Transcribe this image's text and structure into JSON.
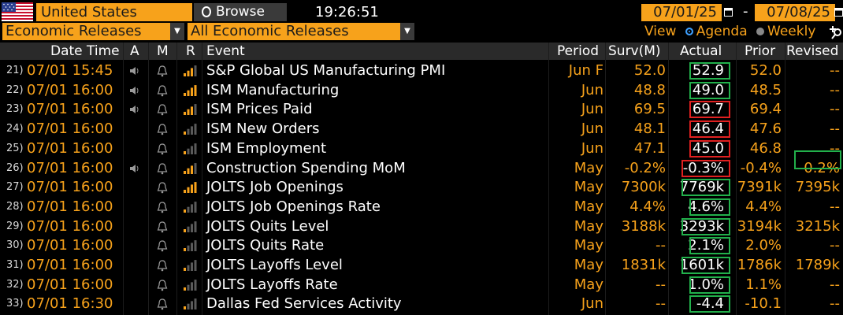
{
  "toolbar": {
    "country": "United States",
    "browse_label": "Browse",
    "clock": "19:26:51",
    "date_start": "07/01/25",
    "date_separator": "-",
    "date_end": "07/08/25"
  },
  "filters": {
    "category": "Economic Releases",
    "subcategory": "All Economic Releases",
    "view_label": "View",
    "view_options": [
      "Agenda",
      "Weekly"
    ],
    "view_selected": "Agenda"
  },
  "columns": [
    "Date Time",
    "A",
    "M",
    "R",
    "Event",
    "Period",
    "Surv(M)",
    "Actual",
    "Prior",
    "Revised"
  ],
  "rows": [
    {
      "num": "21)",
      "dt": "07/01 15:45",
      "alert": true,
      "bars": 3,
      "event": "S&P Global US Manufacturing PMI",
      "period": "Jun F",
      "surv": "52.0",
      "actual": "52.9",
      "prior": "52.0",
      "revised": "--",
      "actual_box": "green",
      "revised_box": ""
    },
    {
      "num": "22)",
      "dt": "07/01 16:00",
      "alert": true,
      "bars": 4,
      "event": "ISM Manufacturing",
      "period": "Jun",
      "surv": "48.8",
      "actual": "49.0",
      "prior": "48.5",
      "revised": "--",
      "actual_box": "green",
      "revised_box": ""
    },
    {
      "num": "23)",
      "dt": "07/01 16:00",
      "alert": true,
      "bars": 3,
      "event": "ISM Prices Paid",
      "period": "Jun",
      "surv": "69.5",
      "actual": "69.7",
      "prior": "69.4",
      "revised": "--",
      "actual_box": "red",
      "revised_box": ""
    },
    {
      "num": "24)",
      "dt": "07/01 16:00",
      "alert": false,
      "bars": 1,
      "event": "ISM New Orders",
      "period": "Jun",
      "surv": "48.1",
      "actual": "46.4",
      "prior": "47.6",
      "revised": "--",
      "actual_box": "red",
      "revised_box": ""
    },
    {
      "num": "25)",
      "dt": "07/01 16:00",
      "alert": false,
      "bars": 1,
      "event": "ISM Employment",
      "period": "Jun",
      "surv": "47.1",
      "actual": "45.0",
      "prior": "46.8",
      "revised": "--",
      "actual_box": "red",
      "revised_box": ""
    },
    {
      "num": "26)",
      "dt": "07/01 16:00",
      "alert": true,
      "bars": 3,
      "event": "Construction Spending MoM",
      "period": "May",
      "surv": "-0.2%",
      "actual": "-0.3%",
      "prior": "-0.4%",
      "revised": "-0.2%",
      "actual_box": "red",
      "revised_box": "green"
    },
    {
      "num": "27)",
      "dt": "07/01 16:00",
      "alert": false,
      "bars": 4,
      "event": "JOLTS Job Openings",
      "period": "May",
      "surv": "7300k",
      "actual": "7769k",
      "prior": "7391k",
      "revised": "7395k",
      "actual_box": "green",
      "revised_box": ""
    },
    {
      "num": "28)",
      "dt": "07/01 16:00",
      "alert": false,
      "bars": 1,
      "event": "JOLTS Job Openings Rate",
      "period": "May",
      "surv": "4.4%",
      "actual": "4.6%",
      "prior": "4.4%",
      "revised": "--",
      "actual_box": "green",
      "revised_box": ""
    },
    {
      "num": "29)",
      "dt": "07/01 16:00",
      "alert": false,
      "bars": 1,
      "event": "JOLTS Quits Level",
      "period": "May",
      "surv": "3188k",
      "actual": "3293k",
      "prior": "3194k",
      "revised": "3215k",
      "actual_box": "green",
      "revised_box": ""
    },
    {
      "num": "30)",
      "dt": "07/01 16:00",
      "alert": false,
      "bars": 1,
      "event": "JOLTS Quits Rate",
      "period": "May",
      "surv": "--",
      "actual": "2.1%",
      "prior": "2.0%",
      "revised": "--",
      "actual_box": "green",
      "revised_box": ""
    },
    {
      "num": "31)",
      "dt": "07/01 16:00",
      "alert": false,
      "bars": 1,
      "event": "JOLTS Layoffs Level",
      "period": "May",
      "surv": "1831k",
      "actual": "1601k",
      "prior": "1786k",
      "revised": "1789k",
      "actual_box": "green",
      "revised_box": ""
    },
    {
      "num": "32)",
      "dt": "07/01 16:00",
      "alert": false,
      "bars": 1,
      "event": "JOLTS Layoffs Rate",
      "period": "May",
      "surv": "--",
      "actual": "1.0%",
      "prior": "1.1%",
      "revised": "--",
      "actual_box": "green",
      "revised_box": ""
    },
    {
      "num": "33)",
      "dt": "07/01 16:30",
      "alert": false,
      "bars": 1,
      "event": "Dallas Fed Services Activity",
      "period": "Jun",
      "surv": "--",
      "actual": "-4.4",
      "prior": "-10.1",
      "revised": "--",
      "actual_box": "green",
      "revised_box": ""
    }
  ],
  "colors": {
    "accent": "#f7a21b",
    "positive": "#22b04b",
    "negative": "#e02020",
    "radio_on": "#3ea0ff"
  }
}
